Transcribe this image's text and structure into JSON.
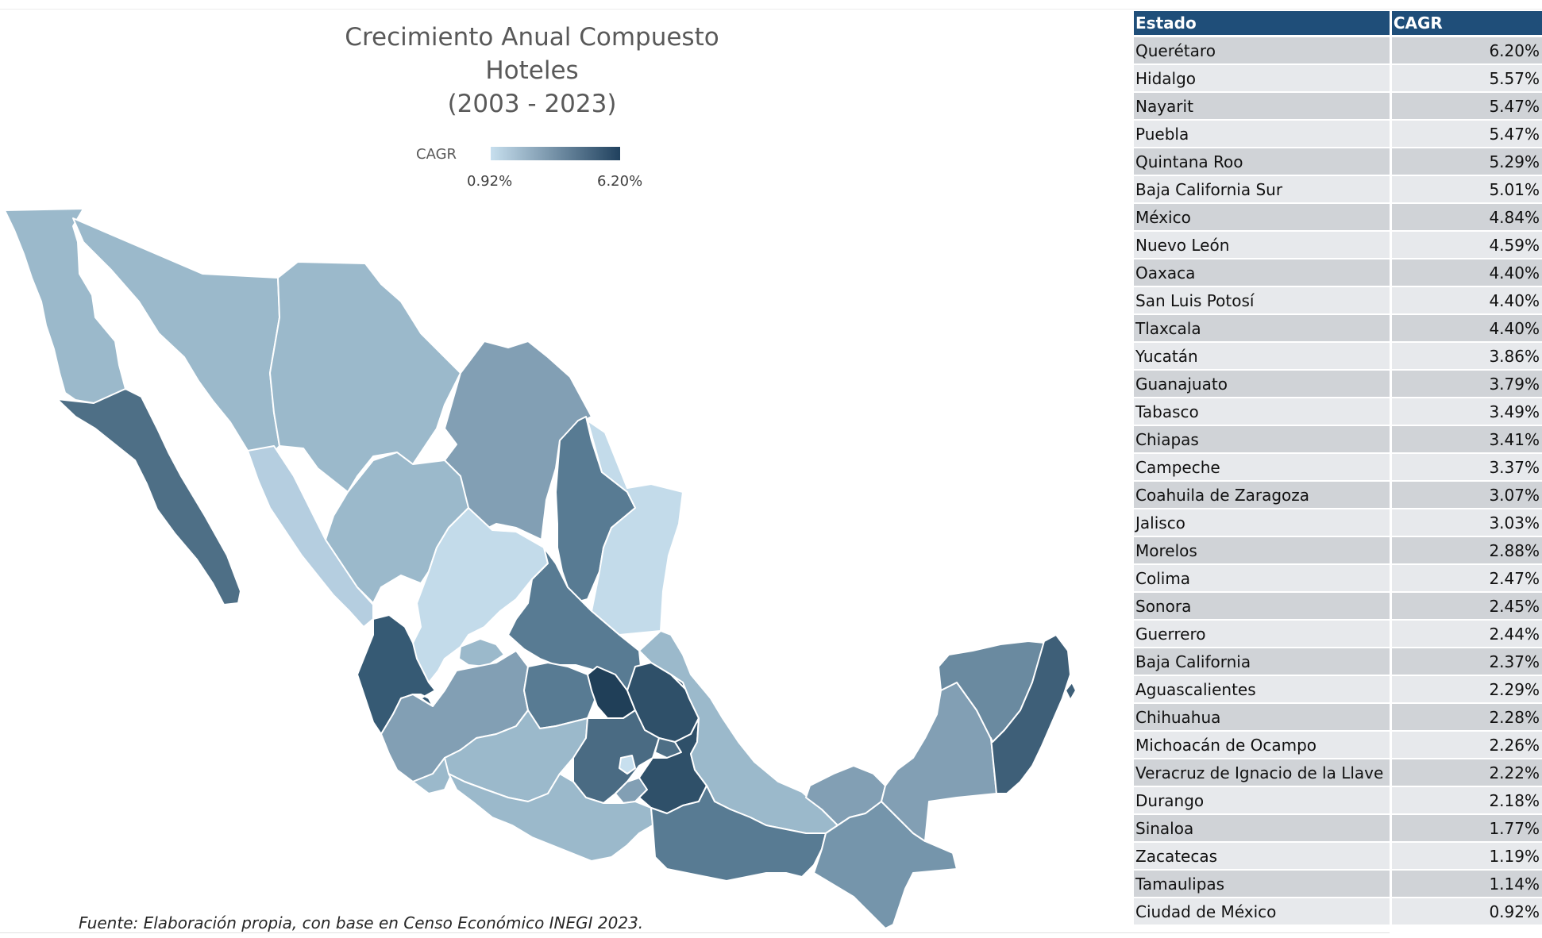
{
  "title": {
    "line1": "Crecimiento Anual Compuesto",
    "line2": "Hoteles",
    "line3": "(2003 - 2023)"
  },
  "legend": {
    "label": "CAGR",
    "min": "0.92%",
    "max": "6.20%",
    "color_low": "#c7dfee",
    "color_high": "#20415e"
  },
  "source": "Fuente: Elaboración propia, con base en Censo Económico INEGI 2023.",
  "table": {
    "headers": {
      "state": "Estado",
      "value": "CAGR"
    },
    "rows": [
      {
        "state": "Querétaro",
        "value": "6.20%"
      },
      {
        "state": "Hidalgo",
        "value": "5.57%"
      },
      {
        "state": "Nayarit",
        "value": "5.47%"
      },
      {
        "state": "Puebla",
        "value": "5.47%"
      },
      {
        "state": "Quintana Roo",
        "value": "5.29%"
      },
      {
        "state": "Baja California Sur",
        "value": "5.01%"
      },
      {
        "state": "México",
        "value": "4.84%"
      },
      {
        "state": "Nuevo León",
        "value": "4.59%"
      },
      {
        "state": "Oaxaca",
        "value": "4.40%"
      },
      {
        "state": "San Luis Potosí",
        "value": "4.40%"
      },
      {
        "state": "Tlaxcala",
        "value": "4.40%"
      },
      {
        "state": "Yucatán",
        "value": "3.86%"
      },
      {
        "state": "Guanajuato",
        "value": "3.79%"
      },
      {
        "state": "Tabasco",
        "value": "3.49%"
      },
      {
        "state": "Chiapas",
        "value": "3.41%"
      },
      {
        "state": "Campeche",
        "value": "3.37%"
      },
      {
        "state": "Coahuila de Zaragoza",
        "value": "3.07%"
      },
      {
        "state": "Jalisco",
        "value": "3.03%"
      },
      {
        "state": "Morelos",
        "value": "2.88%"
      },
      {
        "state": "Colima",
        "value": "2.47%"
      },
      {
        "state": "Sonora",
        "value": "2.45%"
      },
      {
        "state": "Guerrero",
        "value": "2.44%"
      },
      {
        "state": "Baja California",
        "value": "2.37%"
      },
      {
        "state": "Aguascalientes",
        "value": "2.29%"
      },
      {
        "state": "Chihuahua",
        "value": "2.28%"
      },
      {
        "state": "Michoacán de Ocampo",
        "value": "2.26%"
      },
      {
        "state": "Veracruz de Ignacio de la Llave",
        "value": "2.22%"
      },
      {
        "state": "Durango",
        "value": "2.18%"
      },
      {
        "state": "Sinaloa",
        "value": "1.77%"
      },
      {
        "state": "Zacatecas",
        "value": "1.19%"
      },
      {
        "state": "Tamaulipas",
        "value": "1.14%"
      },
      {
        "state": "Ciudad de México",
        "value": "0.92%"
      }
    ]
  }
}
